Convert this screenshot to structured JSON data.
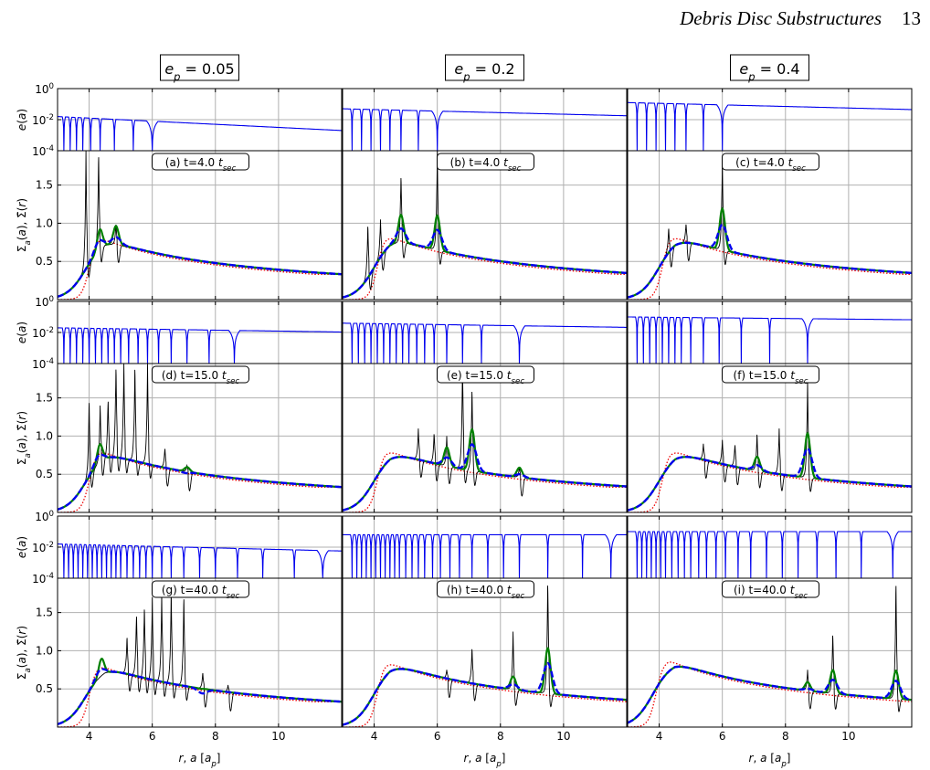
{
  "header": {
    "running_title": "Debris Disc Substructures",
    "page_number": "13"
  },
  "column_titles": [
    "e_p = 0.05",
    "e_p = 0.2",
    "e_p = 0.4"
  ],
  "axis_labels": {
    "e_panel_ylabel": "e(a)",
    "sigma_panel_ylabel": "Σ_a(a), Σ̄(r)",
    "xlabel": "r, a [a_p]"
  },
  "ticks": {
    "x": [
      4,
      6,
      8,
      10
    ],
    "x_labels": [
      "4",
      "6",
      "8",
      "10"
    ],
    "e_y_labels": [
      "10^0",
      "10^-2",
      "10^-4"
    ],
    "sigma_y": [
      0.5,
      1.0,
      1.5
    ],
    "sigma_y_labels": [
      "0.5",
      "1.0",
      "1.5"
    ]
  },
  "colors": {
    "e_curve": "#0000ee",
    "sigma_a": "#000000",
    "smooth_green": "#008000",
    "smooth_blue": "#0000ee",
    "initial_red": "#ee0000",
    "grid": "#b0b0b0"
  },
  "chart_data": {
    "type": "line",
    "layout": "3x3 grid, each panel = e(a) strip above Σ strip",
    "xlim": [
      3.0,
      12.0
    ],
    "e_ylim_log10": [
      -4,
      0
    ],
    "sigma_ylim": [
      0,
      1.95
    ],
    "grid": true,
    "series_styles": [
      {
        "key": "sigma_a",
        "style": "solid thin black"
      },
      {
        "key": "green",
        "style": "solid thick green"
      },
      {
        "key": "blue",
        "style": "dashed thick blue"
      },
      {
        "key": "red",
        "style": "dotted red"
      }
    ],
    "panels": [
      {
        "label": "(a) t=4.0 t_sec",
        "column": 0,
        "row": 0,
        "e_curve": {
          "amp_log10": -1.8,
          "amp_slope": -0.1,
          "resonances": [
            3.2,
            3.4,
            3.6,
            3.8,
            4.05,
            4.35,
            4.8,
            5.4,
            6.0
          ],
          "wide_minimum": 6.0
        },
        "sigma_peaks": [
          [
            3.9,
            1.95
          ],
          [
            4.3,
            1.95
          ],
          [
            4.85,
            1.0
          ]
        ],
        "smooth_peaks": [
          [
            4.35,
            0.95
          ],
          [
            4.85,
            0.99
          ]
        ],
        "initial_profile": {
          "inner_edge": 4.0,
          "peak": 0.82,
          "outer_at_12": 0.33
        }
      },
      {
        "label": "(b) t=4.0 t_sec",
        "column": 1,
        "row": 0,
        "e_curve": {
          "amp_log10": -1.3,
          "amp_slope": -0.05,
          "resonances": [
            3.3,
            3.6,
            3.9,
            4.2,
            4.5,
            4.85,
            5.4,
            6.0
          ],
          "wide_minimum": 6.0
        },
        "sigma_peaks": [
          [
            3.8,
            1.0
          ],
          [
            4.2,
            1.05
          ],
          [
            4.85,
            1.65
          ],
          [
            6.0,
            1.95
          ]
        ],
        "smooth_peaks": [
          [
            4.85,
            1.15
          ],
          [
            6.0,
            1.15
          ]
        ],
        "initial_profile": {
          "inner_edge": 4.1,
          "peak": 0.86,
          "outer_at_12": 0.33
        }
      },
      {
        "label": "(c) t=4.0 t_sec",
        "column": 2,
        "row": 0,
        "e_curve": {
          "amp_log10": -0.9,
          "amp_slope": -0.05,
          "resonances": [
            3.3,
            3.6,
            3.9,
            4.2,
            4.5,
            4.85,
            5.4,
            6.0
          ],
          "wide_minimum": 6.0
        },
        "sigma_peaks": [
          [
            4.3,
            0.95
          ],
          [
            4.85,
            1.0
          ],
          [
            6.0,
            1.85
          ]
        ],
        "smooth_peaks": [
          [
            6.0,
            1.25
          ]
        ],
        "initial_profile": {
          "inner_edge": 4.1,
          "peak": 0.86,
          "outer_at_12": 0.33
        }
      },
      {
        "label": "(d) t=15.0 t_sec",
        "column": 0,
        "row": 1,
        "e_curve": {
          "amp_log10": -1.7,
          "amp_slope": -0.03,
          "resonances": [
            3.2,
            3.4,
            3.6,
            3.8,
            4.0,
            4.2,
            4.4,
            4.6,
            4.8,
            5.0,
            5.25,
            5.55,
            5.85,
            6.2,
            6.6,
            7.1,
            7.8,
            8.6
          ],
          "wide_minimum": 8.6
        },
        "sigma_peaks": [
          [
            4.0,
            1.5
          ],
          [
            4.35,
            1.4
          ],
          [
            4.6,
            1.5
          ],
          [
            4.85,
            1.95
          ],
          [
            5.1,
            1.95
          ],
          [
            5.45,
            1.95
          ],
          [
            5.85,
            1.95
          ],
          [
            6.4,
            0.85
          ],
          [
            7.1,
            0.62
          ]
        ],
        "smooth_peaks": [
          [
            4.35,
            0.92
          ],
          [
            7.1,
            0.6
          ]
        ],
        "initial_profile": {
          "inner_edge": 4.0,
          "peak": 0.82,
          "outer_at_12": 0.33
        }
      },
      {
        "label": "(e) t=15.0 t_sec",
        "column": 1,
        "row": 1,
        "e_curve": {
          "amp_log10": -1.4,
          "amp_slope": -0.03,
          "resonances": [
            3.3,
            3.5,
            3.7,
            3.9,
            4.1,
            4.3,
            4.5,
            4.7,
            4.9,
            5.1,
            5.35,
            5.6,
            5.9,
            6.3,
            6.8,
            7.4,
            8.6
          ],
          "wide_minimum": 8.6
        },
        "sigma_peaks": [
          [
            5.4,
            1.1
          ],
          [
            5.9,
            1.05
          ],
          [
            6.3,
            1.0
          ],
          [
            6.8,
            1.95
          ],
          [
            7.1,
            1.65
          ],
          [
            8.6,
            0.6
          ]
        ],
        "smooth_peaks": [
          [
            6.3,
            0.88
          ],
          [
            7.1,
            1.15
          ],
          [
            8.6,
            0.6
          ]
        ],
        "initial_profile": {
          "inner_edge": 4.1,
          "peak": 0.84,
          "outer_at_12": 0.33
        }
      },
      {
        "label": "(f) t=15.0 t_sec",
        "column": 2,
        "row": 1,
        "e_curve": {
          "amp_log10": -1.0,
          "amp_slope": -0.02,
          "resonances": [
            3.3,
            3.5,
            3.7,
            3.9,
            4.1,
            4.3,
            4.5,
            4.7,
            5.0,
            5.4,
            5.9,
            6.6,
            7.5,
            8.7
          ],
          "wide_minimum": 8.7
        },
        "sigma_peaks": [
          [
            5.4,
            0.9
          ],
          [
            6.0,
            0.95
          ],
          [
            6.4,
            0.9
          ],
          [
            7.1,
            1.05
          ],
          [
            7.8,
            1.1
          ],
          [
            8.7,
            1.75
          ]
        ],
        "smooth_peaks": [
          [
            7.1,
            0.75
          ],
          [
            8.7,
            1.1
          ]
        ],
        "initial_profile": {
          "inner_edge": 4.1,
          "peak": 0.84,
          "outer_at_12": 0.33
        }
      },
      {
        "label": "(g) t=40.0 t_sec",
        "column": 0,
        "row": 2,
        "e_curve": {
          "amp_log10": -1.8,
          "amp_slope": -0.05,
          "resonances": [
            3.2,
            3.35,
            3.5,
            3.65,
            3.8,
            3.95,
            4.1,
            4.25,
            4.4,
            4.55,
            4.7,
            4.85,
            5.0,
            5.2,
            5.4,
            5.6,
            5.8,
            6.0,
            6.3,
            6.6,
            7.0,
            7.5,
            8.0,
            8.7,
            9.5,
            10.5,
            11.4
          ],
          "wide_minimum": 11.4
        },
        "sigma_peaks": [
          [
            5.2,
            1.2
          ],
          [
            5.5,
            1.5
          ],
          [
            5.75,
            1.6
          ],
          [
            6.0,
            1.7
          ],
          [
            6.3,
            1.75
          ],
          [
            6.6,
            1.8
          ],
          [
            7.0,
            1.75
          ],
          [
            7.6,
            0.72
          ],
          [
            8.4,
            0.55
          ]
        ],
        "smooth_peaks": [
          [
            4.4,
            0.92
          ],
          [
            7.6,
            0.5
          ]
        ],
        "initial_profile": {
          "inner_edge": 4.0,
          "peak": 0.82,
          "outer_at_12": 0.33
        }
      },
      {
        "label": "(h) t=40.0 t_sec",
        "column": 1,
        "row": 2,
        "e_curve": {
          "amp_log10": -1.2,
          "amp_slope": 0.0,
          "resonances": [
            3.3,
            3.45,
            3.6,
            3.75,
            3.9,
            4.05,
            4.2,
            4.35,
            4.5,
            4.65,
            4.8,
            5.0,
            5.2,
            5.4,
            5.6,
            5.85,
            6.1,
            6.4,
            6.7,
            7.1,
            7.6,
            8.1,
            8.6,
            9.5,
            10.6,
            11.5
          ],
          "wide_minimum": 11.5
        },
        "sigma_peaks": [
          [
            6.3,
            0.75
          ],
          [
            7.1,
            1.05
          ],
          [
            8.4,
            1.25
          ],
          [
            9.5,
            1.95
          ]
        ],
        "smooth_peaks": [
          [
            8.4,
            0.68
          ],
          [
            9.5,
            1.1
          ]
        ],
        "initial_profile": {
          "inner_edge": 4.1,
          "peak": 0.88,
          "outer_at_12": 0.33
        }
      },
      {
        "label": "(i) t=40.0 t_sec",
        "column": 2,
        "row": 2,
        "e_curve": {
          "amp_log10": -1.0,
          "amp_slope": 0.0,
          "resonances": [
            3.3,
            3.45,
            3.6,
            3.75,
            3.9,
            4.05,
            4.2,
            4.4,
            4.6,
            4.8,
            5.0,
            5.25,
            5.5,
            5.8,
            6.1,
            6.5,
            6.9,
            7.4,
            7.9,
            8.4,
            9.0,
            9.6,
            10.4,
            11.4
          ],
          "wide_minimum": 11.4
        },
        "sigma_peaks": [
          [
            8.7,
            0.75
          ],
          [
            9.5,
            1.25
          ],
          [
            11.5,
            1.95
          ]
        ],
        "smooth_peaks": [
          [
            8.7,
            0.6
          ],
          [
            9.5,
            0.78
          ],
          [
            11.5,
            0.78
          ]
        ],
        "initial_profile": {
          "inner_edge": 3.9,
          "peak": 0.88,
          "outer_at_12": 0.33
        }
      }
    ]
  }
}
